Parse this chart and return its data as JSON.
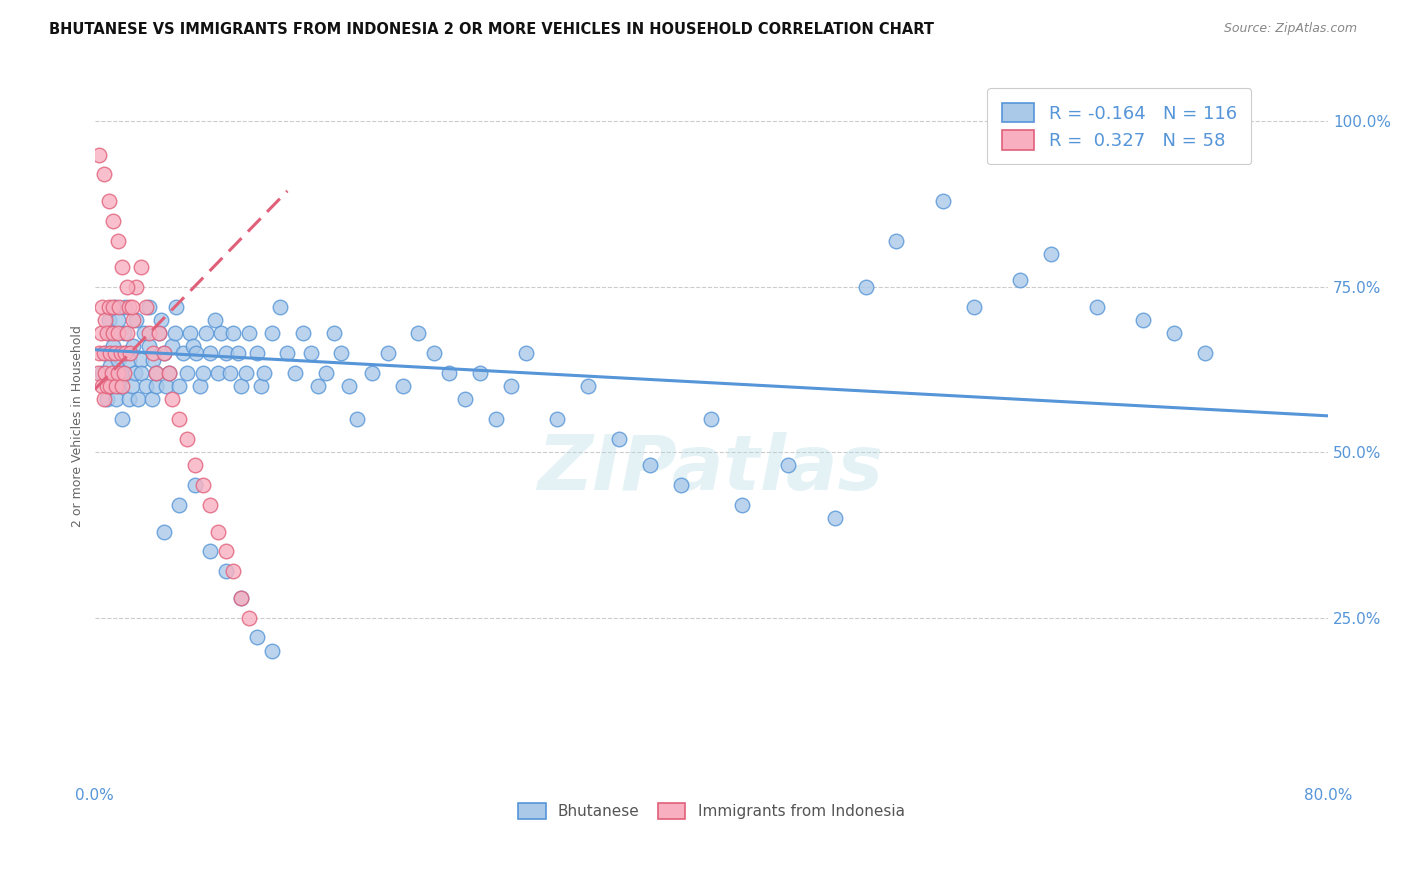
{
  "title": "BHUTANESE VS IMMIGRANTS FROM INDONESIA 2 OR MORE VEHICLES IN HOUSEHOLD CORRELATION CHART",
  "source": "Source: ZipAtlas.com",
  "ylabel": "2 or more Vehicles in Household",
  "ytick_labels": [
    "100.0%",
    "75.0%",
    "50.0%",
    "25.0%"
  ],
  "ytick_values": [
    1.0,
    0.75,
    0.5,
    0.25
  ],
  "xlim": [
    0.0,
    0.8
  ],
  "ylim": [
    0.0,
    1.08
  ],
  "legend_labels": [
    "Bhutanese",
    "Immigrants from Indonesia"
  ],
  "blue_R": -0.164,
  "blue_N": 116,
  "pink_R": 0.327,
  "pink_N": 58,
  "blue_color": "#aac8e8",
  "pink_color": "#f8b0c0",
  "blue_line_color": "#5595d8",
  "pink_line_color": "#e0607a",
  "watermark": "ZIPatlas",
  "grid_color": "#cccccc",
  "background_color": "#ffffff",
  "blue_line_x0": 0.0,
  "blue_line_y0": 0.655,
  "blue_line_x1": 0.8,
  "blue_line_y1": 0.555,
  "pink_line_x0": 0.0,
  "pink_line_y0": 0.595,
  "pink_line_x1": 0.125,
  "pink_line_y1": 0.895,
  "blue_scatter_x": [
    0.005,
    0.007,
    0.008,
    0.009,
    0.01,
    0.01,
    0.011,
    0.012,
    0.013,
    0.014,
    0.015,
    0.015,
    0.016,
    0.017,
    0.018,
    0.019,
    0.02,
    0.02,
    0.022,
    0.022,
    0.024,
    0.025,
    0.026,
    0.027,
    0.028,
    0.03,
    0.03,
    0.032,
    0.033,
    0.035,
    0.035,
    0.037,
    0.038,
    0.04,
    0.04,
    0.042,
    0.043,
    0.045,
    0.046,
    0.048,
    0.05,
    0.052,
    0.053,
    0.055,
    0.057,
    0.06,
    0.062,
    0.064,
    0.066,
    0.068,
    0.07,
    0.072,
    0.075,
    0.078,
    0.08,
    0.082,
    0.085,
    0.088,
    0.09,
    0.093,
    0.095,
    0.098,
    0.1,
    0.105,
    0.108,
    0.11,
    0.115,
    0.12,
    0.125,
    0.13,
    0.135,
    0.14,
    0.145,
    0.15,
    0.155,
    0.16,
    0.165,
    0.17,
    0.18,
    0.19,
    0.2,
    0.21,
    0.22,
    0.23,
    0.24,
    0.25,
    0.26,
    0.27,
    0.28,
    0.3,
    0.32,
    0.34,
    0.36,
    0.38,
    0.4,
    0.42,
    0.45,
    0.48,
    0.5,
    0.52,
    0.55,
    0.57,
    0.6,
    0.62,
    0.65,
    0.68,
    0.7,
    0.72,
    0.045,
    0.055,
    0.065,
    0.075,
    0.085,
    0.095,
    0.105,
    0.115
  ],
  "blue_scatter_y": [
    0.62,
    0.65,
    0.58,
    0.7,
    0.63,
    0.68,
    0.6,
    0.66,
    0.72,
    0.58,
    0.64,
    0.7,
    0.6,
    0.62,
    0.55,
    0.68,
    0.65,
    0.72,
    0.58,
    0.64,
    0.6,
    0.66,
    0.62,
    0.7,
    0.58,
    0.64,
    0.62,
    0.68,
    0.6,
    0.66,
    0.72,
    0.58,
    0.64,
    0.6,
    0.62,
    0.68,
    0.7,
    0.65,
    0.6,
    0.62,
    0.66,
    0.68,
    0.72,
    0.6,
    0.65,
    0.62,
    0.68,
    0.66,
    0.65,
    0.6,
    0.62,
    0.68,
    0.65,
    0.7,
    0.62,
    0.68,
    0.65,
    0.62,
    0.68,
    0.65,
    0.6,
    0.62,
    0.68,
    0.65,
    0.6,
    0.62,
    0.68,
    0.72,
    0.65,
    0.62,
    0.68,
    0.65,
    0.6,
    0.62,
    0.68,
    0.65,
    0.6,
    0.55,
    0.62,
    0.65,
    0.6,
    0.68,
    0.65,
    0.62,
    0.58,
    0.62,
    0.55,
    0.6,
    0.65,
    0.55,
    0.6,
    0.52,
    0.48,
    0.45,
    0.55,
    0.42,
    0.48,
    0.4,
    0.75,
    0.82,
    0.88,
    0.72,
    0.76,
    0.8,
    0.72,
    0.7,
    0.68,
    0.65,
    0.38,
    0.42,
    0.45,
    0.35,
    0.32,
    0.28,
    0.22,
    0.2
  ],
  "pink_scatter_x": [
    0.002,
    0.003,
    0.004,
    0.005,
    0.005,
    0.006,
    0.006,
    0.007,
    0.007,
    0.008,
    0.008,
    0.009,
    0.01,
    0.01,
    0.011,
    0.012,
    0.012,
    0.013,
    0.014,
    0.015,
    0.015,
    0.016,
    0.017,
    0.018,
    0.019,
    0.02,
    0.021,
    0.022,
    0.023,
    0.025,
    0.027,
    0.03,
    0.033,
    0.035,
    0.038,
    0.04,
    0.042,
    0.045,
    0.048,
    0.05,
    0.055,
    0.06,
    0.065,
    0.07,
    0.075,
    0.08,
    0.085,
    0.09,
    0.095,
    0.1,
    0.003,
    0.006,
    0.009,
    0.012,
    0.015,
    0.018,
    0.021,
    0.024
  ],
  "pink_scatter_y": [
    0.62,
    0.65,
    0.68,
    0.72,
    0.6,
    0.58,
    0.65,
    0.7,
    0.62,
    0.6,
    0.68,
    0.72,
    0.65,
    0.6,
    0.62,
    0.68,
    0.72,
    0.65,
    0.6,
    0.62,
    0.68,
    0.72,
    0.65,
    0.6,
    0.62,
    0.65,
    0.68,
    0.72,
    0.65,
    0.7,
    0.75,
    0.78,
    0.72,
    0.68,
    0.65,
    0.62,
    0.68,
    0.65,
    0.62,
    0.58,
    0.55,
    0.52,
    0.48,
    0.45,
    0.42,
    0.38,
    0.35,
    0.32,
    0.28,
    0.25,
    0.95,
    0.92,
    0.88,
    0.85,
    0.82,
    0.78,
    0.75,
    0.72
  ]
}
